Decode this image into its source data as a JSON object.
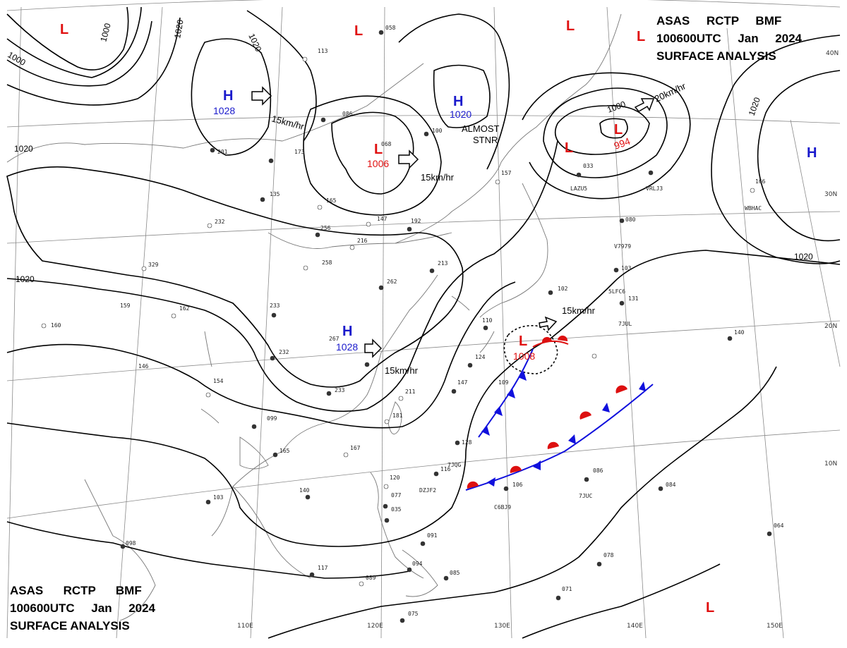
{
  "header_top": {
    "line1": "ASAS     RCTP     BMF",
    "line2": "100600UTC     Jan     2024",
    "line3": "SURFACE  ANALYSIS"
  },
  "header_bottom": {
    "line1": "ASAS      RCTP      BMF",
    "line2": "100600UTC     Jan     2024",
    "line3": "SURFACE  ANALYSIS"
  },
  "longitude_labels": [
    "110E",
    "120E",
    "130E",
    "140E",
    "150E"
  ],
  "latitude_labels": [
    "40N",
    "30N",
    "20N",
    "10N"
  ],
  "isobar_labels": [
    "1000",
    "1000",
    "1020",
    "1020",
    "1020",
    "1020",
    "1020",
    "1000",
    "1020"
  ],
  "pressure_centers": [
    {
      "type": "H",
      "value": "1028"
    },
    {
      "type": "H",
      "value": "1020"
    },
    {
      "type": "H",
      "value": "1028"
    },
    {
      "type": "H",
      "value": ""
    },
    {
      "type": "L",
      "value": "1006"
    },
    {
      "type": "L",
      "value": "994"
    },
    {
      "type": "L",
      "value": "1008"
    },
    {
      "type": "L",
      "value": ""
    }
  ],
  "movement_labels": [
    "15km/hr",
    "15km/hr",
    "20km/hr",
    "15km/hr",
    "15km/hr"
  ],
  "almost_stnr": [
    "ALMOST",
    "STNR"
  ],
  "station_ids": [
    "LAZU5",
    "VRLJ3",
    "WBHAC",
    "V7979",
    "5LFC6",
    "7JUL",
    "C6BJ9",
    "7JUC",
    "7JQG",
    "DZJF2"
  ],
  "station_values": [
    "058",
    "113",
    "086",
    "068",
    "100",
    "157",
    "201",
    "173",
    "135",
    "165",
    "147",
    "192",
    "232",
    "256",
    "216",
    "329",
    "258",
    "262",
    "213",
    "233",
    "162",
    "159",
    "160",
    "267",
    "232",
    "146",
    "154",
    "233",
    "099",
    "165",
    "140",
    "103",
    "098",
    "117",
    "089",
    "075",
    "091",
    "094",
    "085",
    "120",
    "077",
    "035",
    "116",
    "128",
    "167",
    "211",
    "181",
    "147",
    "109",
    "124",
    "110",
    "102",
    "033",
    "080",
    "103",
    "131",
    "140",
    "166",
    "106",
    "086",
    "084",
    "078",
    "071",
    "064"
  ],
  "colors": {
    "high": "#1a1acc",
    "low": "#e01010",
    "cold_front": "#1010dd",
    "warm_front": "#dd1010",
    "grid": "#8a8a8a",
    "coast": "#777777"
  }
}
